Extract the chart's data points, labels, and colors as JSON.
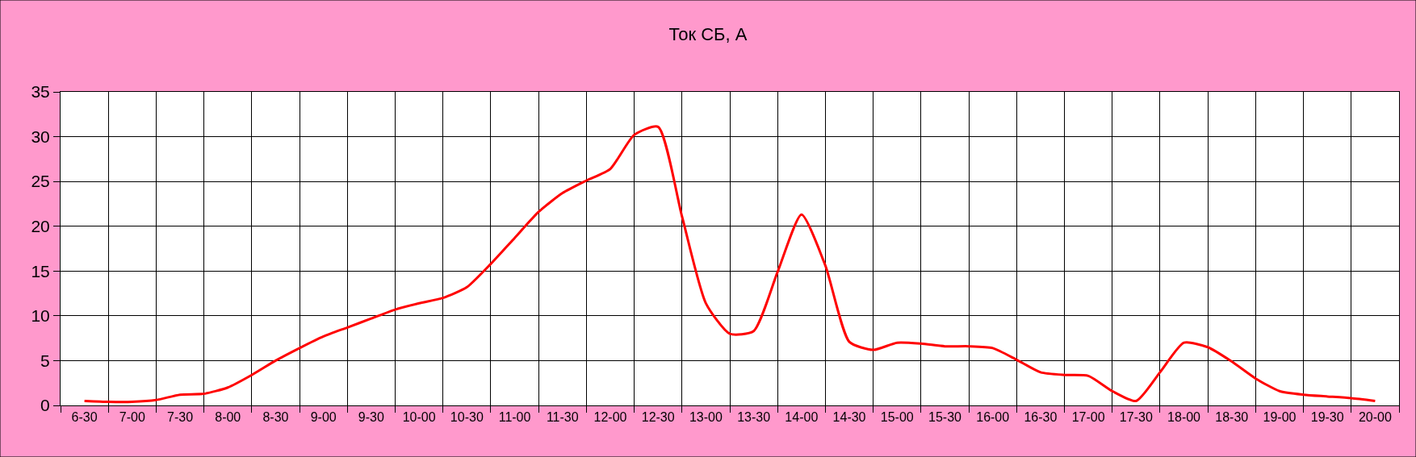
{
  "chart_data": {
    "type": "line",
    "title": "Ток СБ, А",
    "categories": [
      "6-30",
      null,
      "7-00",
      null,
      "7-30",
      null,
      "8-00",
      null,
      "8-30",
      null,
      "9-00",
      null,
      "9-30",
      null,
      "10-00",
      null,
      "10-30",
      null,
      "11-00",
      null,
      "11-30",
      null,
      "12-00",
      null,
      "12-30",
      null,
      "13-00",
      null,
      "13-30",
      null,
      "14-00",
      null,
      "14-30",
      null,
      "15-00",
      null,
      "15-30",
      null,
      "16-00",
      null,
      "16-30",
      null,
      "17-00",
      null,
      "17-30",
      null,
      "18-00",
      null,
      "18-30",
      null,
      "19-00",
      null,
      "19-30",
      null,
      "20-00"
    ],
    "series": [
      {
        "color": "#ff0000",
        "values": [
          0.5,
          0.4,
          0.4,
          0.6,
          1.2,
          1.3,
          2.0,
          3.4,
          5.0,
          6.4,
          7.7,
          8.7,
          9.7,
          10.7,
          11.4,
          12.0,
          13.2,
          15.8,
          18.7,
          21.6,
          23.7,
          25.1,
          26.4,
          30.2,
          31.1,
          21.1,
          11.4,
          8.0,
          8.3,
          14.9,
          21.3,
          15.6,
          7.1,
          6.2,
          7.0,
          6.9,
          6.6,
          6.6,
          6.4,
          5.1,
          3.7,
          3.4,
          3.3,
          1.6,
          0.5,
          3.7,
          7.0,
          6.5,
          4.9,
          3.0,
          1.6,
          1.2,
          1.0,
          0.8,
          0.5
        ]
      }
    ],
    "ylim": [
      0,
      35
    ],
    "yticks": [
      0,
      5,
      10,
      15,
      20,
      25,
      30,
      35
    ],
    "grid": true,
    "marker": "none",
    "line_style": "solid"
  }
}
